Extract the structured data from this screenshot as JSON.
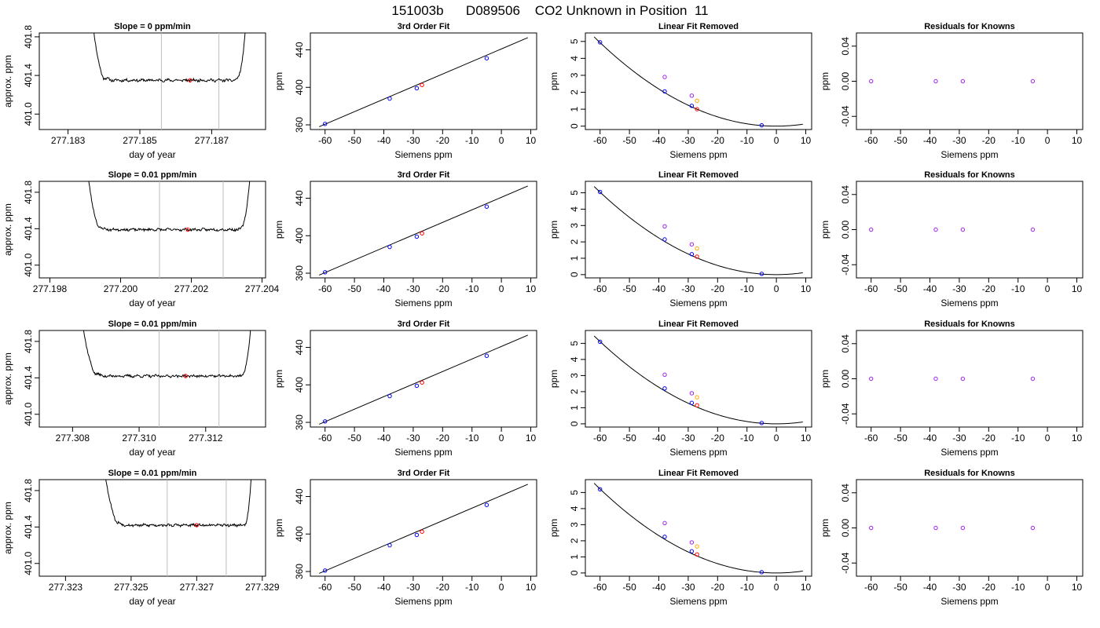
{
  "page_title": "151003b      D089506    CO2 Unknown in Position  11",
  "colors": {
    "axis": "#000000",
    "curve": "#000000",
    "marker_lines": "#bebebe",
    "known_points": "#0000ff",
    "unknown_point": "#ff0000",
    "magenta_point": "#a020f0",
    "orange_point": "#ffa500"
  },
  "chart_data": [
    {
      "type": "line",
      "row": 0,
      "col": 0,
      "title": "Slope =  0  ppm/min",
      "xlabel": "day of year",
      "ylabel": "approx. ppm",
      "xlim": [
        277.1822,
        277.1885
      ],
      "ylim": [
        400.84,
        401.84
      ],
      "xticks": [
        277.183,
        277.185,
        277.187
      ],
      "xtick_labels": [
        "277.183",
        "277.185",
        "277.187"
      ],
      "yticks": [
        401.0,
        401.4,
        401.8
      ],
      "ytick_labels": [
        "401.0",
        "401.4",
        "401.8"
      ],
      "vlines": [
        277.1856,
        277.1872
      ],
      "trace": {
        "x_start": 277.1836,
        "x_end": 277.188,
        "plateau_start": 277.184,
        "plateau_end": 277.1876,
        "baseline": 401.35,
        "edge_high": 402.2,
        "noise": 0.012,
        "seed": 11
      },
      "red_point": {
        "x": 277.1864,
        "y": 401.35
      }
    },
    {
      "type": "scatter",
      "row": 0,
      "col": 1,
      "title": "3rd Order Fit",
      "xlabel": "Siemens ppm",
      "ylabel": "ppm",
      "xlim": [
        -65,
        12
      ],
      "ylim": [
        355,
        458
      ],
      "xticks": [
        -60,
        -50,
        -40,
        -30,
        -20,
        -10,
        0,
        10
      ],
      "xtick_labels": [
        "-60",
        "-50",
        "-40",
        "-30",
        "-20",
        "-10",
        "0",
        "10"
      ],
      "yticks": [
        360,
        400,
        440
      ],
      "ytick_labels": [
        "360",
        "400",
        "440"
      ],
      "fit_line": [
        [
          -62,
          358
        ],
        [
          9,
          453
        ]
      ],
      "knowns": [
        [
          -60,
          361
        ],
        [
          -38,
          388
        ],
        [
          -28.8,
          399
        ],
        [
          -5,
          431
        ]
      ],
      "unknown": [
        [
          -27,
          402.5
        ]
      ]
    },
    {
      "type": "scatter",
      "row": 0,
      "col": 2,
      "title": "Linear Fit Removed",
      "xlabel": "Siemens ppm",
      "ylabel": "ppm",
      "xlim": [
        -65,
        12
      ],
      "ylim": [
        -0.2,
        5.5
      ],
      "xticks": [
        -60,
        -50,
        -40,
        -30,
        -20,
        -10,
        0,
        10
      ],
      "xtick_labels": [
        "-60",
        "-50",
        "-40",
        "-30",
        "-20",
        "-10",
        "0",
        "10"
      ],
      "yticks": [
        0,
        1,
        2,
        3,
        4,
        5
      ],
      "ytick_labels": [
        "0",
        "1",
        "2",
        "3",
        "4",
        "5"
      ],
      "curve": {
        "a": 0.00137,
        "x_from": -62,
        "x_to": 9
      },
      "knowns": [
        [
          -60,
          4.95
        ],
        [
          -38,
          2.05
        ],
        [
          -28.8,
          1.2
        ],
        [
          -5,
          0.05
        ]
      ],
      "unknown": [
        [
          -27,
          1.0
        ]
      ],
      "magenta": [
        [
          -38,
          2.9
        ],
        [
          -28.8,
          1.8
        ]
      ],
      "orange": [
        [
          -27,
          1.5
        ]
      ]
    },
    {
      "type": "scatter",
      "row": 0,
      "col": 3,
      "title": "Residuals for Knowns",
      "xlabel": "Siemens ppm",
      "ylabel": "ppm",
      "xlim": [
        -65,
        12
      ],
      "ylim": [
        -0.055,
        0.055
      ],
      "xticks": [
        -60,
        -50,
        -40,
        -30,
        -20,
        -10,
        0,
        10
      ],
      "xtick_labels": [
        "-60",
        "-50",
        "-40",
        "-30",
        "-20",
        "-10",
        "0",
        "10"
      ],
      "yticks": [
        -0.04,
        0.0,
        0.04
      ],
      "ytick_labels": [
        "-0.04",
        "0.00",
        "0.04"
      ],
      "knowns": [
        [
          -60,
          0
        ],
        [
          -38,
          0
        ],
        [
          -28.8,
          0
        ],
        [
          -5,
          0
        ]
      ]
    },
    {
      "type": "line",
      "row": 1,
      "col": 0,
      "title": "Slope =  0.01  ppm/min",
      "xlabel": "day of year",
      "ylabel": "approx. ppm",
      "xlim": [
        277.1977,
        277.2041
      ],
      "ylim": [
        400.86,
        401.92
      ],
      "xticks": [
        277.198,
        277.2,
        277.202,
        277.204
      ],
      "xtick_labels": [
        "277.198",
        "277.200",
        "277.202",
        "277.204"
      ],
      "yticks": [
        401.0,
        401.4,
        401.8
      ],
      "ytick_labels": [
        "401.0",
        "401.4",
        "401.8"
      ],
      "vlines": [
        277.2011,
        277.2029
      ],
      "trace": {
        "x_start": 277.199,
        "x_end": 277.2037,
        "plateau_start": 277.1994,
        "plateau_end": 277.2033,
        "baseline": 401.39,
        "edge_high": 402.2,
        "noise": 0.012,
        "seed": 23
      },
      "red_point": {
        "x": 277.2019,
        "y": 401.39
      }
    },
    {
      "type": "scatter",
      "row": 1,
      "col": 1,
      "title": "3rd Order Fit",
      "xlabel": "Siemens ppm",
      "ylabel": "ppm",
      "xlim": [
        -65,
        12
      ],
      "ylim": [
        355,
        458
      ],
      "xticks": [
        -60,
        -50,
        -40,
        -30,
        -20,
        -10,
        0,
        10
      ],
      "xtick_labels": [
        "-60",
        "-50",
        "-40",
        "-30",
        "-20",
        "-10",
        "0",
        "10"
      ],
      "yticks": [
        360,
        400,
        440
      ],
      "ytick_labels": [
        "360",
        "400",
        "440"
      ],
      "fit_line": [
        [
          -62,
          358
        ],
        [
          9,
          453
        ]
      ],
      "knowns": [
        [
          -60,
          361
        ],
        [
          -38,
          388
        ],
        [
          -28.8,
          399
        ],
        [
          -5,
          431
        ]
      ],
      "unknown": [
        [
          -27,
          402.5
        ]
      ]
    },
    {
      "type": "scatter",
      "row": 1,
      "col": 2,
      "title": "Linear Fit Removed",
      "xlabel": "Siemens ppm",
      "ylabel": "ppm",
      "xlim": [
        -65,
        12
      ],
      "ylim": [
        -0.2,
        5.7
      ],
      "xticks": [
        -60,
        -50,
        -40,
        -30,
        -20,
        -10,
        0,
        10
      ],
      "xtick_labels": [
        "-60",
        "-50",
        "-40",
        "-30",
        "-20",
        "-10",
        "0",
        "10"
      ],
      "yticks": [
        0,
        1,
        2,
        3,
        4,
        5
      ],
      "ytick_labels": [
        "0",
        "1",
        "2",
        "3",
        "4",
        "5"
      ],
      "curve": {
        "a": 0.0014,
        "x_from": -62,
        "x_to": 9
      },
      "knowns": [
        [
          -60,
          5.05
        ],
        [
          -38,
          2.15
        ],
        [
          -28.8,
          1.25
        ],
        [
          -5,
          0.05
        ]
      ],
      "unknown": [
        [
          -27,
          1.1
        ]
      ],
      "magenta": [
        [
          -38,
          2.95
        ],
        [
          -28.8,
          1.85
        ]
      ],
      "orange": [
        [
          -27,
          1.6
        ]
      ]
    },
    {
      "type": "scatter",
      "row": 1,
      "col": 3,
      "title": "Residuals for Knowns",
      "xlabel": "Siemens ppm",
      "ylabel": "ppm",
      "xlim": [
        -65,
        12
      ],
      "ylim": [
        -0.055,
        0.055
      ],
      "xticks": [
        -60,
        -50,
        -40,
        -30,
        -20,
        -10,
        0,
        10
      ],
      "xtick_labels": [
        "-60",
        "-50",
        "-40",
        "-30",
        "-20",
        "-10",
        "0",
        "10"
      ],
      "yticks": [
        -0.04,
        0.0,
        0.04
      ],
      "ytick_labels": [
        "-0.04",
        "0.00",
        "0.04"
      ],
      "knowns": [
        [
          -60,
          0
        ],
        [
          -38,
          0
        ],
        [
          -28.8,
          0
        ],
        [
          -5,
          0
        ]
      ]
    },
    {
      "type": "line",
      "row": 2,
      "col": 0,
      "title": "Slope =  0.01  ppm/min",
      "xlabel": "day of year",
      "ylabel": "approx. ppm",
      "xlim": [
        277.307,
        277.3138
      ],
      "ylim": [
        400.86,
        401.92
      ],
      "xticks": [
        277.308,
        277.31,
        277.312
      ],
      "xtick_labels": [
        "277.308",
        "277.310",
        "277.312"
      ],
      "yticks": [
        401.0,
        401.4,
        401.8
      ],
      "ytick_labels": [
        "401.0",
        "401.4",
        "401.8"
      ],
      "vlines": [
        277.3106,
        277.3124
      ],
      "trace": {
        "x_start": 277.3082,
        "x_end": 277.3134,
        "plateau_start": 277.3087,
        "plateau_end": 277.313,
        "baseline": 401.42,
        "edge_high": 402.2,
        "noise": 0.012,
        "seed": 37
      },
      "red_point": {
        "x": 277.3114,
        "y": 401.42
      }
    },
    {
      "type": "scatter",
      "row": 2,
      "col": 1,
      "title": "3rd Order Fit",
      "xlabel": "Siemens ppm",
      "ylabel": "ppm",
      "xlim": [
        -65,
        12
      ],
      "ylim": [
        355,
        458
      ],
      "xticks": [
        -60,
        -50,
        -40,
        -30,
        -20,
        -10,
        0,
        10
      ],
      "xtick_labels": [
        "-60",
        "-50",
        "-40",
        "-30",
        "-20",
        "-10",
        "0",
        "10"
      ],
      "yticks": [
        360,
        400,
        440
      ],
      "ytick_labels": [
        "360",
        "400",
        "440"
      ],
      "fit_line": [
        [
          -62,
          358
        ],
        [
          9,
          453
        ]
      ],
      "knowns": [
        [
          -60,
          361
        ],
        [
          -38,
          388
        ],
        [
          -28.8,
          399
        ],
        [
          -5,
          431
        ]
      ],
      "unknown": [
        [
          -27,
          402.5
        ]
      ]
    },
    {
      "type": "scatter",
      "row": 2,
      "col": 2,
      "title": "Linear Fit Removed",
      "xlabel": "Siemens ppm",
      "ylabel": "ppm",
      "xlim": [
        -65,
        12
      ],
      "ylim": [
        -0.2,
        5.8
      ],
      "xticks": [
        -60,
        -50,
        -40,
        -30,
        -20,
        -10,
        0,
        10
      ],
      "xtick_labels": [
        "-60",
        "-50",
        "-40",
        "-30",
        "-20",
        "-10",
        "0",
        "10"
      ],
      "yticks": [
        0,
        1,
        2,
        3,
        4,
        5
      ],
      "ytick_labels": [
        "0",
        "1",
        "2",
        "3",
        "4",
        "5"
      ],
      "curve": {
        "a": 0.00142,
        "x_from": -62,
        "x_to": 9
      },
      "knowns": [
        [
          -60,
          5.1
        ],
        [
          -38,
          2.2
        ],
        [
          -28.8,
          1.3
        ],
        [
          -5,
          0.05
        ]
      ],
      "unknown": [
        [
          -27,
          1.15
        ]
      ],
      "magenta": [
        [
          -38,
          3.05
        ],
        [
          -28.8,
          1.9
        ]
      ],
      "orange": [
        [
          -27,
          1.65
        ]
      ]
    },
    {
      "type": "scatter",
      "row": 2,
      "col": 3,
      "title": "Residuals for Knowns",
      "xlabel": "Siemens ppm",
      "ylabel": "ppm",
      "xlim": [
        -65,
        12
      ],
      "ylim": [
        -0.055,
        0.055
      ],
      "xticks": [
        -60,
        -50,
        -40,
        -30,
        -20,
        -10,
        0,
        10
      ],
      "xtick_labels": [
        "-60",
        "-50",
        "-40",
        "-30",
        "-20",
        "-10",
        "0",
        "10"
      ],
      "yticks": [
        -0.04,
        0.0,
        0.04
      ],
      "ytick_labels": [
        "-0.04",
        "0.00",
        "0.04"
      ],
      "knowns": [
        [
          -60,
          0
        ],
        [
          -38,
          0
        ],
        [
          -28.8,
          0
        ],
        [
          -5,
          0
        ]
      ]
    },
    {
      "type": "line",
      "row": 3,
      "col": 0,
      "title": "Slope =  0.01  ppm/min",
      "xlabel": "day of year",
      "ylabel": "approx. ppm",
      "xlim": [
        277.3222,
        277.3291
      ],
      "ylim": [
        400.86,
        401.92
      ],
      "xticks": [
        277.323,
        277.325,
        277.327,
        277.329
      ],
      "xtick_labels": [
        "277.323",
        "277.325",
        "277.327",
        "277.329"
      ],
      "yticks": [
        401.0,
        401.4,
        401.8
      ],
      "ytick_labels": [
        "401.0",
        "401.4",
        "401.8"
      ],
      "vlines": [
        277.3261,
        277.3279
      ],
      "trace": {
        "x_start": 277.3241,
        "x_end": 277.3287,
        "plateau_start": 277.3246,
        "plateau_end": 277.3284,
        "baseline": 401.42,
        "edge_high": 402.2,
        "noise": 0.012,
        "seed": 53
      },
      "red_point": {
        "x": 277.327,
        "y": 401.42
      }
    },
    {
      "type": "scatter",
      "row": 3,
      "col": 1,
      "title": "3rd Order Fit",
      "xlabel": "Siemens ppm",
      "ylabel": "ppm",
      "xlim": [
        -65,
        12
      ],
      "ylim": [
        355,
        458
      ],
      "xticks": [
        -60,
        -50,
        -40,
        -30,
        -20,
        -10,
        0,
        10
      ],
      "xtick_labels": [
        "-60",
        "-50",
        "-40",
        "-30",
        "-20",
        "-10",
        "0",
        "10"
      ],
      "yticks": [
        360,
        400,
        440
      ],
      "ytick_labels": [
        "360",
        "400",
        "440"
      ],
      "fit_line": [
        [
          -62,
          358
        ],
        [
          9,
          453
        ]
      ],
      "knowns": [
        [
          -60,
          361
        ],
        [
          -38,
          388
        ],
        [
          -28.8,
          399
        ],
        [
          -5,
          431
        ]
      ],
      "unknown": [
        [
          -27,
          402.5
        ]
      ]
    },
    {
      "type": "scatter",
      "row": 3,
      "col": 2,
      "title": "Linear Fit Removed",
      "xlabel": "Siemens ppm",
      "ylabel": "ppm",
      "xlim": [
        -65,
        12
      ],
      "ylim": [
        -0.2,
        5.8
      ],
      "xticks": [
        -60,
        -50,
        -40,
        -30,
        -20,
        -10,
        0,
        10
      ],
      "xtick_labels": [
        "-60",
        "-50",
        "-40",
        "-30",
        "-20",
        "-10",
        "0",
        "10"
      ],
      "yticks": [
        0,
        1,
        2,
        3,
        4,
        5
      ],
      "ytick_labels": [
        "0",
        "1",
        "2",
        "3",
        "4",
        "5"
      ],
      "curve": {
        "a": 0.00145,
        "x_from": -62,
        "x_to": 9
      },
      "knowns": [
        [
          -60,
          5.2
        ],
        [
          -38,
          2.25
        ],
        [
          -28.8,
          1.35
        ],
        [
          -5,
          0.05
        ]
      ],
      "unknown": [
        [
          -27,
          1.15
        ]
      ],
      "magenta": [
        [
          -38,
          3.1
        ],
        [
          -28.8,
          1.9
        ]
      ],
      "orange": [
        [
          -27,
          1.65
        ]
      ]
    },
    {
      "type": "scatter",
      "row": 3,
      "col": 3,
      "title": "Residuals for Knowns",
      "xlabel": "Siemens ppm",
      "ylabel": "ppm",
      "xlim": [
        -65,
        12
      ],
      "ylim": [
        -0.055,
        0.055
      ],
      "xticks": [
        -60,
        -50,
        -40,
        -30,
        -20,
        -10,
        0,
        10
      ],
      "xtick_labels": [
        "-60",
        "-50",
        "-40",
        "-30",
        "-20",
        "-10",
        "0",
        "10"
      ],
      "yticks": [
        -0.04,
        0.0,
        0.04
      ],
      "ytick_labels": [
        "-0.04",
        "0.00",
        "0.04"
      ],
      "knowns": [
        [
          -60,
          0
        ],
        [
          -38,
          0
        ],
        [
          -28.8,
          0
        ],
        [
          -5,
          0
        ]
      ]
    }
  ]
}
